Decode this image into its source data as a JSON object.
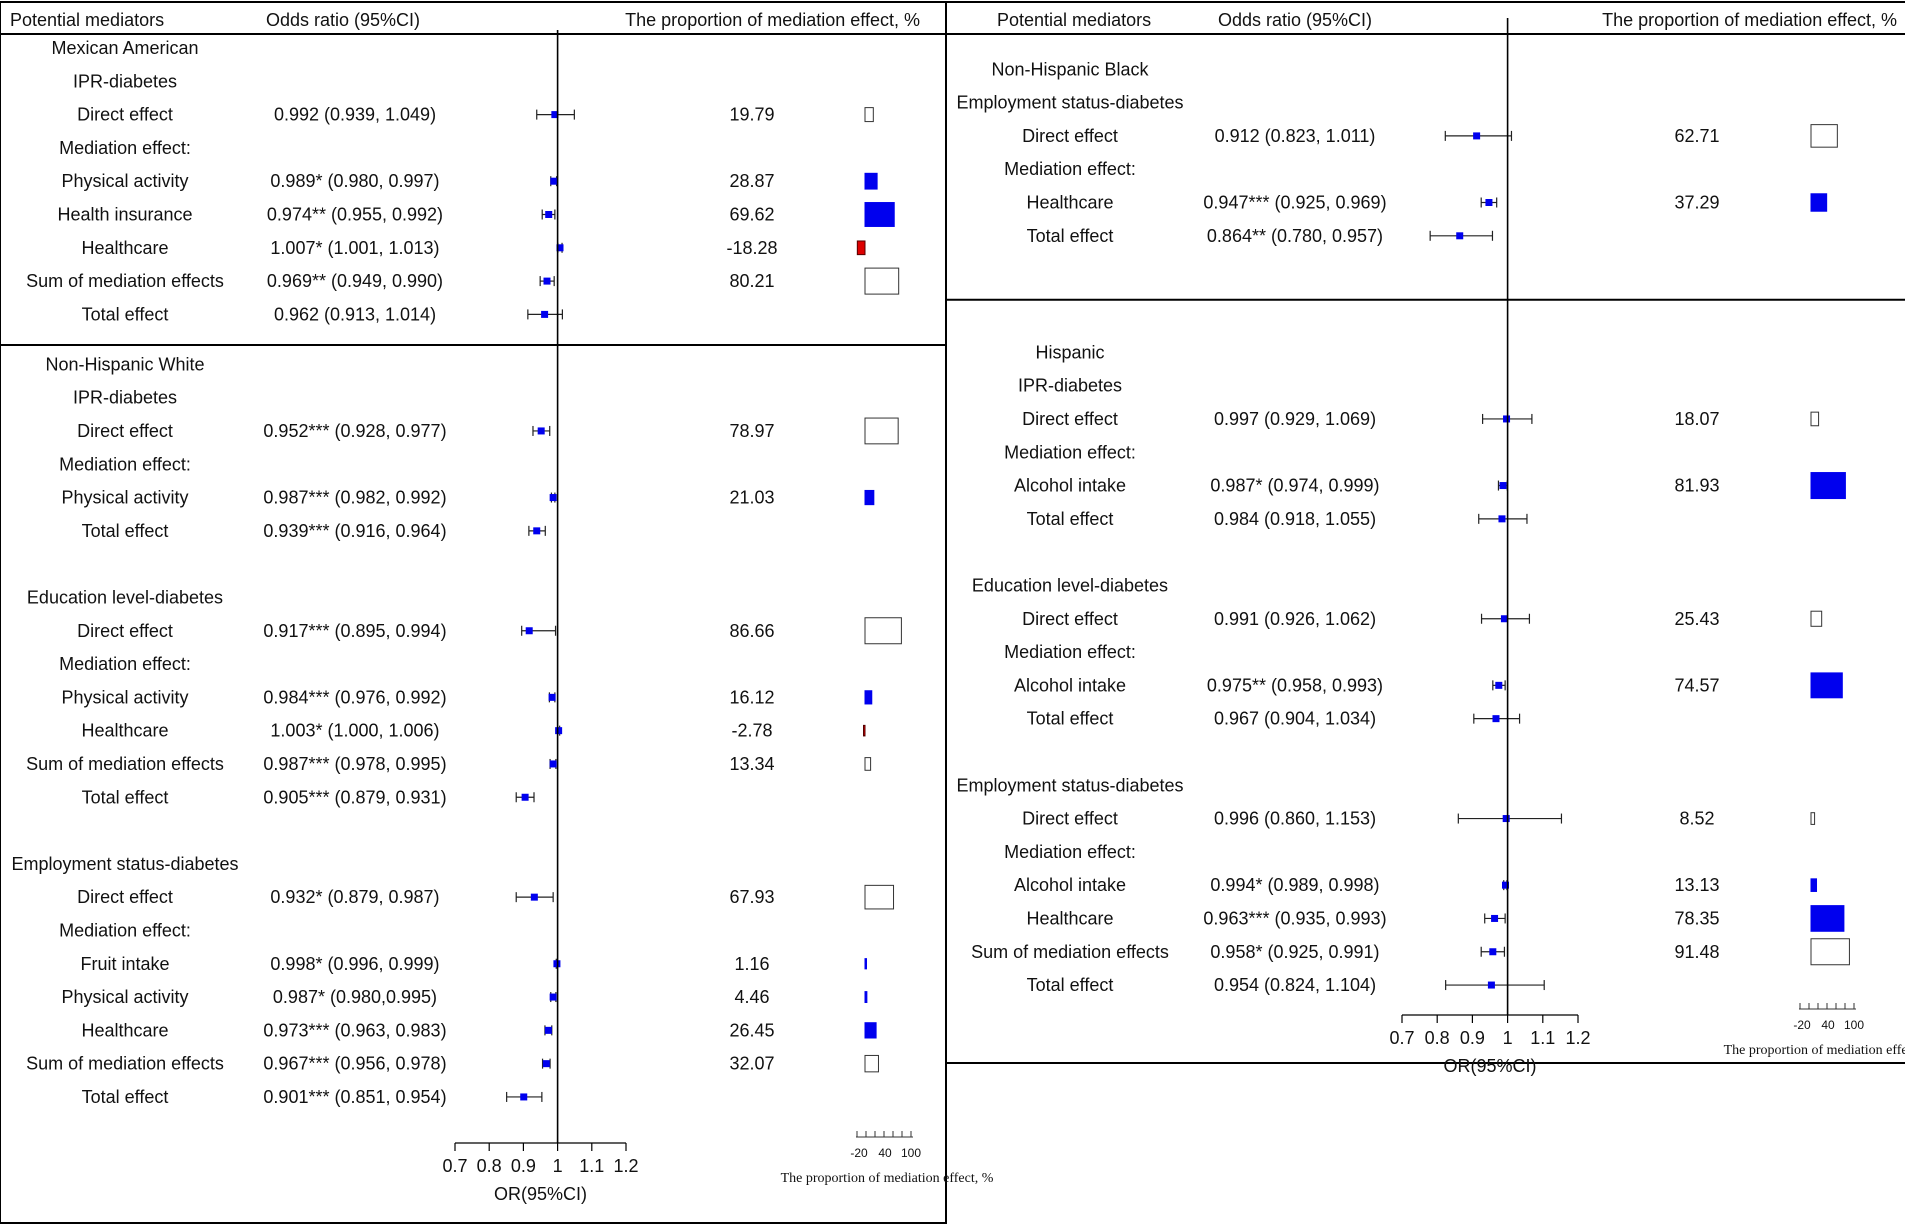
{
  "headers": {
    "mediator": "Potential mediators",
    "or": "Odds ratio (95%CI)",
    "prop": "The proportion of mediation effect, %"
  },
  "axis": {
    "label": "OR(95%CI)",
    "ticks": [
      "0.7",
      "0.8",
      "0.9",
      "1",
      "1.1",
      "1.2"
    ],
    "prop_ticks": [
      "-20",
      "40",
      "100"
    ],
    "prop_caption": "The proportion of mediation effect, %"
  },
  "colors": {
    "positive": "#0000ee",
    "negative": "#dd0000",
    "total": "#ffffff",
    "line": "#000000"
  },
  "chart_data": [
    {
      "type": "forest",
      "panel": "left",
      "xlabel": "OR(95%CI)",
      "xlim": [
        0.7,
        1.2
      ],
      "rows": [
        {
          "label": "Mexican American"
        },
        {
          "label": "IPR-diabetes"
        },
        {
          "label": "Direct effect",
          "or_text": "0.992 (0.939, 1.049)",
          "or": 0.992,
          "lo": 0.939,
          "hi": 1.049,
          "prop_text": "19.79",
          "prop": 19.79,
          "fill": "white"
        },
        {
          "label": "Mediation effect:"
        },
        {
          "label": "Physical activity",
          "or_text": "0.989* (0.980, 0.997)",
          "or": 0.989,
          "lo": 0.98,
          "hi": 0.997,
          "prop_text": "28.87",
          "prop": 28.87,
          "fill": "blue"
        },
        {
          "label": "Health insurance",
          "or_text": "0.974** (0.955, 0.992)",
          "or": 0.974,
          "lo": 0.955,
          "hi": 0.992,
          "prop_text": "69.62",
          "prop": 69.62,
          "fill": "blue"
        },
        {
          "label": "Healthcare",
          "or_text": "1.007* (1.001, 1.013)",
          "or": 1.007,
          "lo": 1.001,
          "hi": 1.013,
          "prop_text": "-18.28",
          "prop": -18.28,
          "fill": "red"
        },
        {
          "label": "Sum of mediation effects",
          "or_text": "0.969** (0.949, 0.990)",
          "or": 0.969,
          "lo": 0.949,
          "hi": 0.99,
          "prop_text": "80.21",
          "prop": 80.21,
          "fill": "white"
        },
        {
          "label": "Total effect",
          "or_text": "0.962 (0.913, 1.014)",
          "or": 0.962,
          "lo": 0.913,
          "hi": 1.014
        },
        {
          "divider": true
        },
        {
          "label": "Non-Hispanic White"
        },
        {
          "label": "IPR-diabetes"
        },
        {
          "label": "Direct effect",
          "or_text": "0.952*** (0.928, 0.977)",
          "or": 0.952,
          "lo": 0.928,
          "hi": 0.977,
          "prop_text": "78.97",
          "prop": 78.97,
          "fill": "white"
        },
        {
          "label": "Mediation effect:"
        },
        {
          "label": "Physical activity",
          "or_text": "0.987*** (0.982, 0.992)",
          "or": 0.987,
          "lo": 0.982,
          "hi": 0.992,
          "prop_text": "21.03",
          "prop": 21.03,
          "fill": "blue"
        },
        {
          "label": "Total effect",
          "or_text": "0.939*** (0.916, 0.964)",
          "or": 0.939,
          "lo": 0.916,
          "hi": 0.964
        },
        {
          "spacer": true
        },
        {
          "label": "Education level-diabetes"
        },
        {
          "label": "Direct effect",
          "or_text": "0.917*** (0.895, 0.994)",
          "or": 0.917,
          "lo": 0.895,
          "hi": 0.994,
          "prop_text": "86.66",
          "prop": 86.66,
          "fill": "white"
        },
        {
          "label": "Mediation effect:"
        },
        {
          "label": "Physical activity",
          "or_text": "0.984*** (0.976, 0.992)",
          "or": 0.984,
          "lo": 0.976,
          "hi": 0.992,
          "prop_text": "16.12",
          "prop": 16.12,
          "fill": "blue"
        },
        {
          "label": "Healthcare",
          "or_text": "1.003* (1.000, 1.006)",
          "or": 1.003,
          "lo": 1.0,
          "hi": 1.006,
          "prop_text": "-2.78",
          "prop": -2.78,
          "fill": "red"
        },
        {
          "label": "Sum of mediation effects",
          "or_text": "0.987*** (0.978, 0.995)",
          "or": 0.987,
          "lo": 0.978,
          "hi": 0.995,
          "prop_text": "13.34",
          "prop": 13.34,
          "fill": "white"
        },
        {
          "label": "Total effect",
          "or_text": "0.905*** (0.879, 0.931)",
          "or": 0.905,
          "lo": 0.879,
          "hi": 0.931
        },
        {
          "spacer": true
        },
        {
          "label": "Employment status-diabetes"
        },
        {
          "label": "Direct effect",
          "or_text": "0.932* (0.879, 0.987)",
          "or": 0.932,
          "lo": 0.879,
          "hi": 0.987,
          "prop_text": "67.93",
          "prop": 67.93,
          "fill": "white"
        },
        {
          "label": "Mediation effect:"
        },
        {
          "label": "Fruit intake",
          "or_text": "0.998* (0.996, 0.999)",
          "or": 0.998,
          "lo": 0.996,
          "hi": 0.999,
          "prop_text": "1.16",
          "prop": 1.16,
          "fill": "blue"
        },
        {
          "label": "Physical activity",
          "or_text": "0.987* (0.980,0.995)",
          "or": 0.987,
          "lo": 0.98,
          "hi": 0.995,
          "prop_text": "4.46",
          "prop": 4.46,
          "fill": "blue"
        },
        {
          "label": "Healthcare",
          "or_text": "0.973*** (0.963, 0.983)",
          "or": 0.973,
          "lo": 0.963,
          "hi": 0.983,
          "prop_text": "26.45",
          "prop": 26.45,
          "fill": "blue"
        },
        {
          "label": "Sum of mediation effects",
          "or_text": "0.967*** (0.956, 0.978)",
          "or": 0.967,
          "lo": 0.956,
          "hi": 0.978,
          "prop_text": "32.07",
          "prop": 32.07,
          "fill": "white"
        },
        {
          "label": "Total effect",
          "or_text": "0.901*** (0.851, 0.954)",
          "or": 0.901,
          "lo": 0.851,
          "hi": 0.954
        }
      ]
    },
    {
      "type": "forest",
      "panel": "right",
      "xlabel": "OR(95%CI)",
      "xlim": [
        0.7,
        1.2
      ],
      "rows": [
        {
          "spacer": true
        },
        {
          "label": "Non-Hispanic Black"
        },
        {
          "label": "Employment status-diabetes"
        },
        {
          "label": "Direct effect",
          "or_text": "0.912 (0.823, 1.011)",
          "or": 0.912,
          "lo": 0.823,
          "hi": 1.011,
          "prop_text": "62.71",
          "prop": 62.71,
          "fill": "white"
        },
        {
          "label": "Mediation effect:"
        },
        {
          "label": "Healthcare",
          "or_text": "0.947*** (0.925, 0.969)",
          "or": 0.947,
          "lo": 0.925,
          "hi": 0.969,
          "prop_text": "37.29",
          "prop": 37.29,
          "fill": "blue"
        },
        {
          "label": "Total effect",
          "or_text": "0.864** (0.780, 0.957)",
          "or": 0.864,
          "lo": 0.78,
          "hi": 0.957
        },
        {
          "spacer": true
        },
        {
          "divider": true
        },
        {
          "spacer": true
        },
        {
          "label": "Hispanic"
        },
        {
          "label": "IPR-diabetes"
        },
        {
          "label": "Direct effect",
          "or_text": "0.997 (0.929, 1.069)",
          "or": 0.997,
          "lo": 0.929,
          "hi": 1.069,
          "prop_text": "18.07",
          "prop": 18.07,
          "fill": "white"
        },
        {
          "label": "Mediation effect:"
        },
        {
          "label": "Alcohol intake",
          "or_text": "0.987* (0.974, 0.999)",
          "or": 0.987,
          "lo": 0.974,
          "hi": 0.999,
          "prop_text": "81.93",
          "prop": 81.93,
          "fill": "blue"
        },
        {
          "label": "Total effect",
          "or_text": "0.984 (0.918, 1.055)",
          "or": 0.984,
          "lo": 0.918,
          "hi": 1.055
        },
        {
          "spacer": true
        },
        {
          "label": "Education level-diabetes"
        },
        {
          "label": "Direct effect",
          "or_text": "0.991 (0.926, 1.062)",
          "or": 0.991,
          "lo": 0.926,
          "hi": 1.062,
          "prop_text": "25.43",
          "prop": 25.43,
          "fill": "white"
        },
        {
          "label": "Mediation effect:"
        },
        {
          "label": "Alcohol intake",
          "or_text": "0.975** (0.958, 0.993)",
          "or": 0.975,
          "lo": 0.958,
          "hi": 0.993,
          "prop_text": "74.57",
          "prop": 74.57,
          "fill": "blue"
        },
        {
          "label": "Total effect",
          "or_text": "0.967 (0.904, 1.034)",
          "or": 0.967,
          "lo": 0.904,
          "hi": 1.034
        },
        {
          "spacer": true
        },
        {
          "label": "Employment status-diabetes"
        },
        {
          "label": "Direct effect",
          "or_text": "0.996 (0.860, 1.153)",
          "or": 0.996,
          "lo": 0.86,
          "hi": 1.153,
          "prop_text": "8.52",
          "prop": 8.52,
          "fill": "white"
        },
        {
          "label": "Mediation effect:"
        },
        {
          "label": "Alcohol intake",
          "or_text": "0.994* (0.989, 0.998)",
          "or": 0.994,
          "lo": 0.989,
          "hi": 0.998,
          "prop_text": "13.13",
          "prop": 13.13,
          "fill": "blue"
        },
        {
          "label": "Healthcare",
          "or_text": "0.963*** (0.935, 0.993)",
          "or": 0.963,
          "lo": 0.935,
          "hi": 0.993,
          "prop_text": "78.35",
          "prop": 78.35,
          "fill": "blue"
        },
        {
          "label": "Sum of mediation effects",
          "or_text": "0.958* (0.925, 0.991)",
          "or": 0.958,
          "lo": 0.925,
          "hi": 0.991,
          "prop_text": "91.48",
          "prop": 91.48,
          "fill": "white"
        },
        {
          "label": "Total effect",
          "or_text": "0.954 (0.824, 1.104)",
          "or": 0.954,
          "lo": 0.824,
          "hi": 1.104
        }
      ]
    }
  ]
}
